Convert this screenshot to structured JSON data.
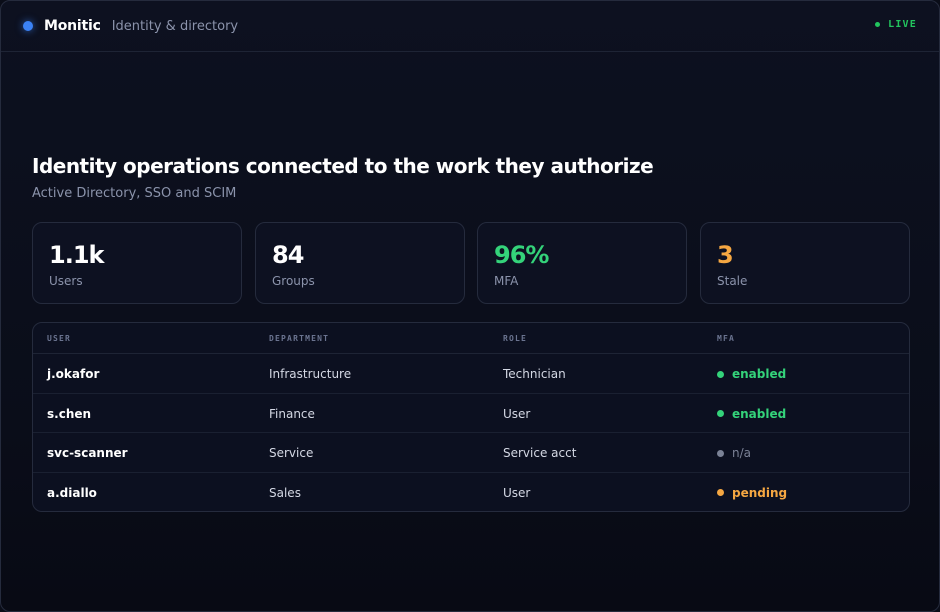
{
  "header": {
    "brand": "Monitic",
    "subtitle": "Identity & directory",
    "status": "LIVE",
    "accent_color": "#3b82f6",
    "status_color": "#22c55e"
  },
  "hero": {
    "title": "Identity operations connected to the work they authorize",
    "subtitle": "Active Directory, SSO and SCIM"
  },
  "stats": [
    {
      "value": "1.1k",
      "label": "Users",
      "color": "#ffffff"
    },
    {
      "value": "84",
      "label": "Groups",
      "color": "#ffffff"
    },
    {
      "value": "96%",
      "label": "MFA",
      "color": "#34d37a"
    },
    {
      "value": "3",
      "label": "Stale",
      "color": "#f5a742"
    }
  ],
  "table": {
    "columns": [
      "USER",
      "DEPARTMENT",
      "ROLE",
      "MFA"
    ],
    "rows": [
      {
        "user": "j.okafor",
        "department": "Infrastructure",
        "role": "Technician",
        "mfa": "enabled",
        "mfa_color": "#34d37a"
      },
      {
        "user": "s.chen",
        "department": "Finance",
        "role": "User",
        "mfa": "enabled",
        "mfa_color": "#34d37a"
      },
      {
        "user": "svc-scanner",
        "department": "Service",
        "role": "Service acct",
        "mfa": "n/a",
        "mfa_color": "#7b8296"
      },
      {
        "user": "a.diallo",
        "department": "Sales",
        "role": "User",
        "mfa": "pending",
        "mfa_color": "#f5a742"
      }
    ]
  }
}
